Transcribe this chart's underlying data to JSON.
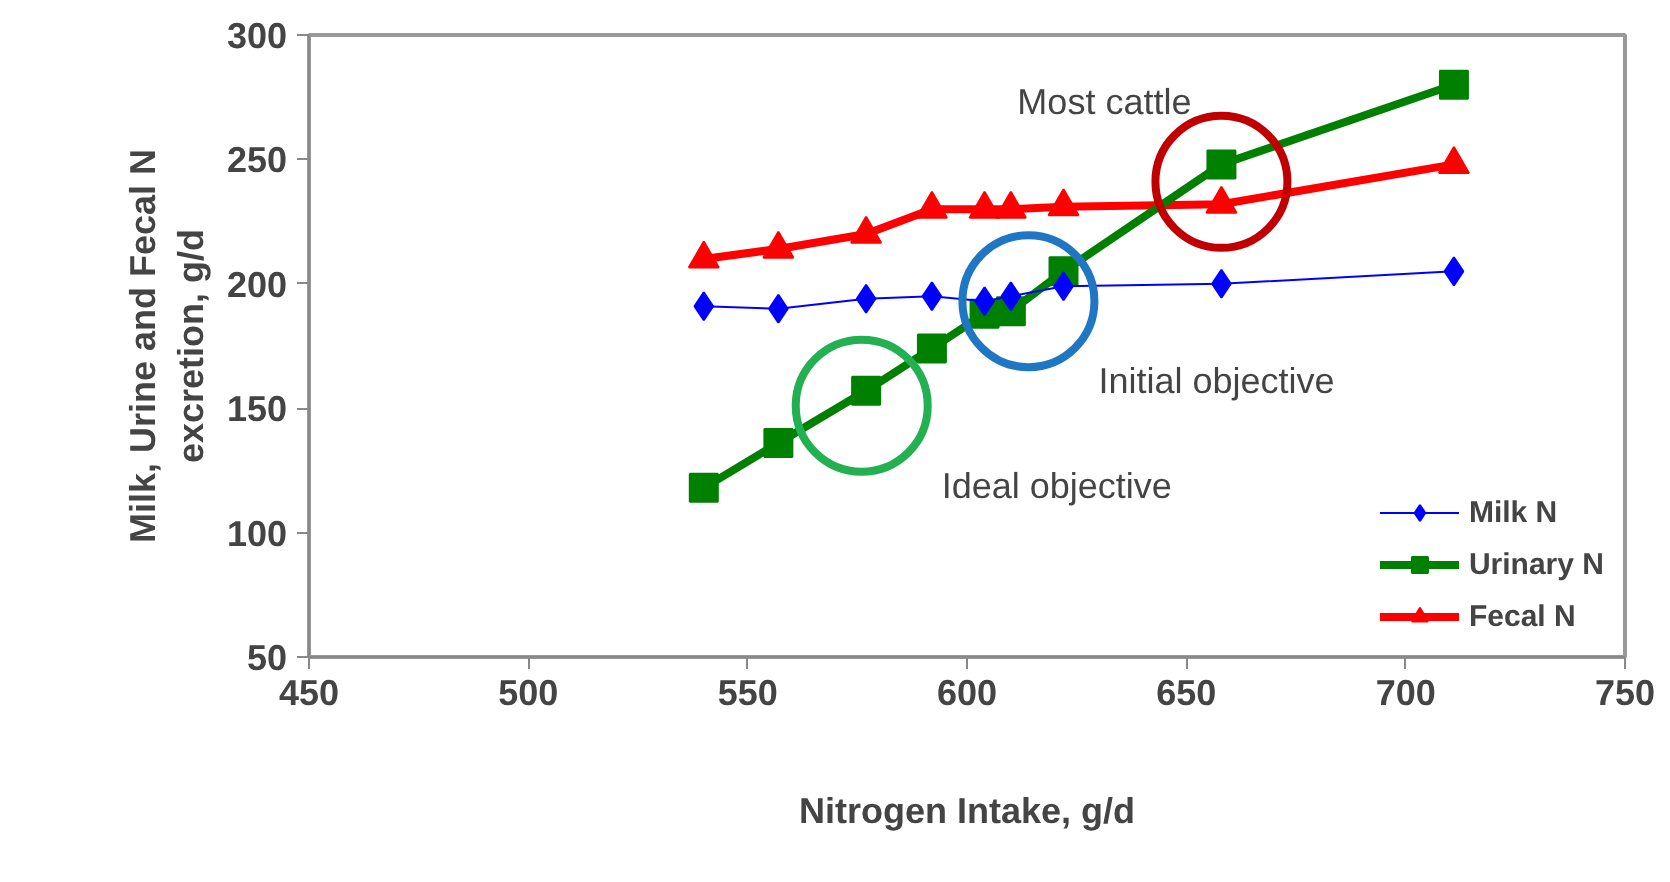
{
  "chart_data": {
    "type": "line",
    "xlabel": "Nitrogen Intake, g/d",
    "ylabel": "Milk, Urine and Fecal N\nexcretion, g/d",
    "x": [
      540,
      557,
      577,
      592,
      604,
      610,
      622,
      658,
      711
    ],
    "series": [
      {
        "name": "Milk N",
        "color": "#0000ff",
        "marker": "diamond",
        "values": [
          191,
          190,
          194,
          195,
          193,
          195,
          199,
          200,
          205
        ]
      },
      {
        "name": "Urinary N",
        "color": "#008000",
        "marker": "square",
        "values": [
          118,
          136,
          157,
          174,
          188,
          189,
          205,
          248,
          280
        ]
      },
      {
        "name": "Fecal N",
        "color": "#ff0000",
        "marker": "triangle",
        "values": [
          210,
          214,
          220,
          230,
          230,
          230,
          231,
          232,
          248
        ]
      }
    ],
    "xlim": [
      450,
      750
    ],
    "xticks": [
      450,
      500,
      550,
      600,
      650,
      700,
      750
    ],
    "ylim": [
      50,
      300
    ],
    "yticks": [
      50,
      100,
      150,
      200,
      250,
      300
    ],
    "grid": false,
    "legend": "bottom right",
    "annotations": [
      {
        "text": "Most cattle",
        "x": 658,
        "y": 241
      },
      {
        "text": "Initial objective",
        "x": 614,
        "y": 193
      },
      {
        "text": "Ideal objective",
        "x": 576,
        "y": 151
      }
    ]
  }
}
